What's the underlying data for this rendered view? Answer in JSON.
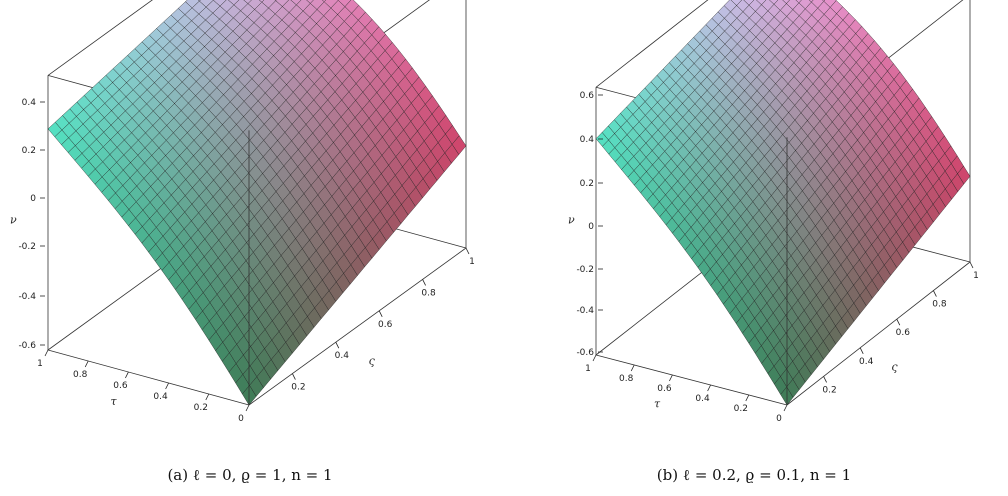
{
  "chart_data": [
    {
      "type": "surface3d",
      "caption": "(a) ℓ = 0, ϱ = 1, n = 1",
      "xlabel": "τ",
      "ylabel": "ς",
      "zlabel": "ν",
      "x_ticks": [
        "0",
        "0.2",
        "0.4",
        "0.6",
        "0.8",
        "1"
      ],
      "y_ticks": [
        "0",
        "0.2",
        "0.4",
        "0.6",
        "0.8",
        "1"
      ],
      "z_ticks": [
        "0.4",
        "0.2",
        "0",
        "-0.2",
        "-0.4",
        "-0.6"
      ],
      "xlim": [
        0,
        1
      ],
      "ylim": [
        0,
        1
      ],
      "zlim": [
        -0.63,
        0.5
      ],
      "corner_values": {
        "x0y0": -0.63,
        "x1y0": 0.28,
        "x0y1": -0.21,
        "x1y1": 0.46
      },
      "grid": true,
      "colors": {
        "low": "#3e7b56",
        "high_left": "#53e2c2",
        "high_right": "#f1b0f2",
        "low_right": "#d0446b",
        "mesh": "#1e1e1e",
        "box": "#333333"
      }
    },
    {
      "type": "surface3d",
      "caption": "(b) ℓ = 0.2, ϱ = 0.1, n = 1",
      "xlabel": "τ",
      "ylabel": "ς",
      "zlabel": "ν",
      "x_ticks": [
        "0",
        "0.2",
        "0.4",
        "0.6",
        "0.8",
        "1"
      ],
      "y_ticks": [
        "0",
        "0.2",
        "0.4",
        "0.6",
        "0.8",
        "1"
      ],
      "z_ticks": [
        "0.6",
        "0.4",
        "0.2",
        "0",
        "-0.2",
        "-0.4",
        "-0.6"
      ],
      "xlim": [
        0,
        1
      ],
      "ylim": [
        0,
        1
      ],
      "zlim": [
        -0.63,
        0.62
      ],
      "corner_values": {
        "x0y0": -0.63,
        "x1y0": 0.38,
        "x0y1": -0.23,
        "x1y1": 0.6
      },
      "grid": true,
      "colors": {
        "low": "#3e7b56",
        "high_left": "#53e2c2",
        "high_right": "#f1b0f2",
        "low_right": "#d0446b",
        "mesh": "#1e1e1e",
        "box": "#333333"
      }
    }
  ]
}
